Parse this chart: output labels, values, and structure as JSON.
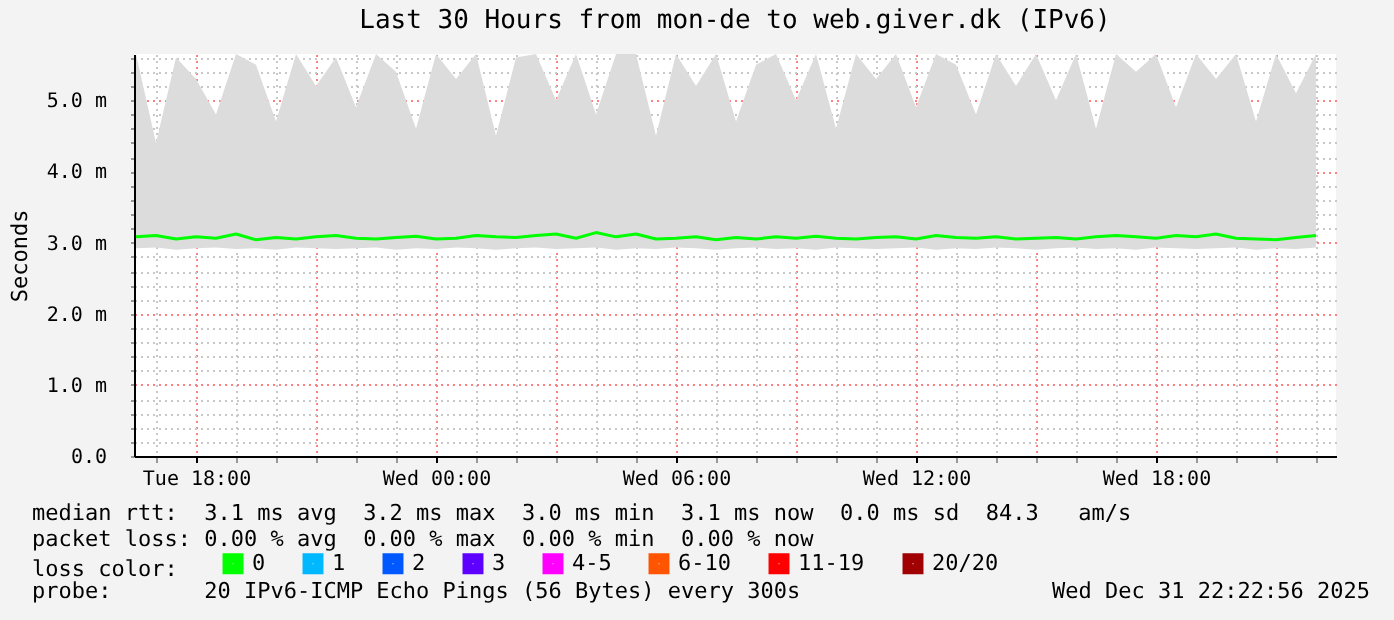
{
  "chart_data": {
    "type": "line",
    "title": "Last 30 Hours from mon-de to web.giver.dk (IPv6)",
    "ylabel": "Seconds",
    "legend_title": "loss color:",
    "legend": "bottom left",
    "grid": true,
    "x": [
      "2025-12-30T16:30",
      "2025-12-30T17:00",
      "2025-12-30T17:30",
      "2025-12-30T18:00",
      "2025-12-30T18:30",
      "2025-12-30T19:00",
      "2025-12-30T19:30",
      "2025-12-30T20:00",
      "2025-12-30T20:30",
      "2025-12-30T21:00",
      "2025-12-30T21:30",
      "2025-12-30T22:00",
      "2025-12-30T22:30",
      "2025-12-30T23:00",
      "2025-12-30T23:30",
      "2025-12-31T00:00",
      "2025-12-31T00:30",
      "2025-12-31T01:00",
      "2025-12-31T01:30",
      "2025-12-31T02:00",
      "2025-12-31T02:30",
      "2025-12-31T03:00",
      "2025-12-31T03:30",
      "2025-12-31T04:00",
      "2025-12-31T04:30",
      "2025-12-31T05:00",
      "2025-12-31T05:30",
      "2025-12-31T06:00",
      "2025-12-31T06:30",
      "2025-12-31T07:00",
      "2025-12-31T07:30",
      "2025-12-31T08:00",
      "2025-12-31T08:30",
      "2025-12-31T09:00",
      "2025-12-31T09:30",
      "2025-12-31T10:00",
      "2025-12-31T10:30",
      "2025-12-31T11:00",
      "2025-12-31T11:30",
      "2025-12-31T12:00",
      "2025-12-31T12:30",
      "2025-12-31T13:00",
      "2025-12-31T13:30",
      "2025-12-31T14:00",
      "2025-12-31T14:30",
      "2025-12-31T15:00",
      "2025-12-31T15:30",
      "2025-12-31T16:00",
      "2025-12-31T16:30",
      "2025-12-31T17:00",
      "2025-12-31T17:30",
      "2025-12-31T18:00",
      "2025-12-31T18:30",
      "2025-12-31T19:00",
      "2025-12-31T19:30",
      "2025-12-31T20:00",
      "2025-12-31T20:30",
      "2025-12-31T21:00",
      "2025-12-31T21:30",
      "2025-12-31T22:00"
    ],
    "series": [
      {
        "name": "0",
        "color": "#00ff00",
        "values": [
          3.08,
          3.1,
          3.05,
          3.08,
          3.06,
          3.12,
          3.04,
          3.07,
          3.05,
          3.08,
          3.1,
          3.06,
          3.05,
          3.07,
          3.09,
          3.05,
          3.06,
          3.1,
          3.08,
          3.07,
          3.1,
          3.12,
          3.06,
          3.14,
          3.08,
          3.12,
          3.05,
          3.06,
          3.08,
          3.04,
          3.07,
          3.05,
          3.08,
          3.06,
          3.09,
          3.06,
          3.05,
          3.07,
          3.08,
          3.05,
          3.1,
          3.07,
          3.06,
          3.08,
          3.05,
          3.06,
          3.07,
          3.05,
          3.08,
          3.1,
          3.08,
          3.06,
          3.1,
          3.08,
          3.12,
          3.06,
          3.05,
          3.04,
          3.07,
          3.1
        ],
        "lower": [
          2.92,
          2.93,
          2.9,
          2.92,
          2.93,
          2.91,
          2.92,
          2.9,
          2.93,
          2.92,
          2.91,
          2.92,
          2.93,
          2.9,
          2.92,
          2.91,
          2.93,
          2.92,
          2.9,
          2.92,
          2.93,
          2.91,
          2.92,
          2.93,
          2.9,
          2.92,
          2.91,
          2.93,
          2.92,
          2.9,
          2.92,
          2.93,
          2.91,
          2.92,
          2.9,
          2.93,
          2.92,
          2.91,
          2.92,
          2.93,
          2.9,
          2.92,
          2.91,
          2.93,
          2.92,
          2.9,
          2.92,
          2.93,
          2.91,
          2.92,
          2.9,
          2.93,
          2.92,
          2.91,
          2.92,
          2.93,
          2.9,
          2.92,
          2.91,
          2.93
        ],
        "upper": [
          5.65,
          4.4,
          5.6,
          5.3,
          4.8,
          5.65,
          5.5,
          4.7,
          5.65,
          5.2,
          5.6,
          4.9,
          5.65,
          5.4,
          4.6,
          5.65,
          5.3,
          5.65,
          4.5,
          5.6,
          5.65,
          5.0,
          5.65,
          4.8,
          5.65,
          5.65,
          4.5,
          5.65,
          5.2,
          5.65,
          4.7,
          5.5,
          5.65,
          5.0,
          5.65,
          4.6,
          5.65,
          5.3,
          5.65,
          4.9,
          5.65,
          5.5,
          4.8,
          5.65,
          5.2,
          5.65,
          5.0,
          5.65,
          4.6,
          5.65,
          5.4,
          5.65,
          4.9,
          5.65,
          5.3,
          5.65,
          4.7,
          5.65,
          5.1,
          5.65
        ]
      },
      {
        "name": "1",
        "color": "#00b8ff",
        "values": [
          null,
          null,
          null,
          null,
          null,
          null,
          null,
          null,
          null,
          null,
          null,
          null,
          null,
          null,
          null,
          null,
          null,
          null,
          null,
          null,
          null,
          null,
          null,
          null,
          null,
          null,
          null,
          null,
          null,
          null,
          null,
          null,
          null,
          null,
          null,
          null,
          null,
          null,
          null,
          null,
          null,
          null,
          null,
          null,
          null,
          null,
          null,
          null,
          null,
          null,
          null,
          null,
          null,
          null,
          null,
          null,
          null,
          null,
          null,
          null
        ]
      },
      {
        "name": "2",
        "color": "#0059ff",
        "values": [
          null,
          null,
          null,
          null,
          null,
          null,
          null,
          null,
          null,
          null,
          null,
          null,
          null,
          null,
          null,
          null,
          null,
          null,
          null,
          null,
          null,
          null,
          null,
          null,
          null,
          null,
          null,
          null,
          null,
          null,
          null,
          null,
          null,
          null,
          null,
          null,
          null,
          null,
          null,
          null,
          null,
          null,
          null,
          null,
          null,
          null,
          null,
          null,
          null,
          null,
          null,
          null,
          null,
          null,
          null,
          null,
          null,
          null,
          null,
          null
        ]
      },
      {
        "name": "3",
        "color": "#5e00ff",
        "values": [
          null,
          null,
          null,
          null,
          null,
          null,
          null,
          null,
          null,
          null,
          null,
          null,
          null,
          null,
          null,
          null,
          null,
          null,
          null,
          null,
          null,
          null,
          null,
          null,
          null,
          null,
          null,
          null,
          null,
          null,
          null,
          null,
          null,
          null,
          null,
          null,
          null,
          null,
          null,
          null,
          null,
          null,
          null,
          null,
          null,
          null,
          null,
          null,
          null,
          null,
          null,
          null,
          null,
          null,
          null,
          null,
          null,
          null,
          null,
          null
        ]
      },
      {
        "name": "4-5",
        "color": "#ff00ff",
        "values": [
          null,
          null,
          null,
          null,
          null,
          null,
          null,
          null,
          null,
          null,
          null,
          null,
          null,
          null,
          null,
          null,
          null,
          null,
          null,
          null,
          null,
          null,
          null,
          null,
          null,
          null,
          null,
          null,
          null,
          null,
          null,
          null,
          null,
          null,
          null,
          null,
          null,
          null,
          null,
          null,
          null,
          null,
          null,
          null,
          null,
          null,
          null,
          null,
          null,
          null,
          null,
          null,
          null,
          null,
          null,
          null,
          null,
          null,
          null,
          null
        ]
      },
      {
        "name": "6-10",
        "color": "#ff5500",
        "values": [
          null,
          null,
          null,
          null,
          null,
          null,
          null,
          null,
          null,
          null,
          null,
          null,
          null,
          null,
          null,
          null,
          null,
          null,
          null,
          null,
          null,
          null,
          null,
          null,
          null,
          null,
          null,
          null,
          null,
          null,
          null,
          null,
          null,
          null,
          null,
          null,
          null,
          null,
          null,
          null,
          null,
          null,
          null,
          null,
          null,
          null,
          null,
          null,
          null,
          null,
          null,
          null,
          null,
          null,
          null,
          null,
          null,
          null,
          null,
          null
        ]
      },
      {
        "name": "11-19",
        "color": "#ff0000",
        "values": [
          null,
          null,
          null,
          null,
          null,
          null,
          null,
          null,
          null,
          null,
          null,
          null,
          null,
          null,
          null,
          null,
          null,
          null,
          null,
          null,
          null,
          null,
          null,
          null,
          null,
          null,
          null,
          null,
          null,
          null,
          null,
          null,
          null,
          null,
          null,
          null,
          null,
          null,
          null,
          null,
          null,
          null,
          null,
          null,
          null,
          null,
          null,
          null,
          null,
          null,
          null,
          null,
          null,
          null,
          null,
          null,
          null,
          null,
          null,
          null
        ]
      },
      {
        "name": "20/20",
        "color": "#a10000",
        "values": [
          null,
          null,
          null,
          null,
          null,
          null,
          null,
          null,
          null,
          null,
          null,
          null,
          null,
          null,
          null,
          null,
          null,
          null,
          null,
          null,
          null,
          null,
          null,
          null,
          null,
          null,
          null,
          null,
          null,
          null,
          null,
          null,
          null,
          null,
          null,
          null,
          null,
          null,
          null,
          null,
          null,
          null,
          null,
          null,
          null,
          null,
          null,
          null,
          null,
          null,
          null,
          null,
          null,
          null,
          null,
          null,
          null,
          null,
          null,
          null
        ]
      }
    ],
    "xlim": [
      "2025-12-30T16:27",
      "2025-12-31T22:30"
    ],
    "xticks": [
      {
        "value": "2025-12-30T17:00",
        "label": null
      },
      {
        "value": "2025-12-30T18:00",
        "label": "Tue 18:00"
      },
      {
        "value": "2025-12-30T19:00",
        "label": null
      },
      {
        "value": "2025-12-30T20:00",
        "label": null
      },
      {
        "value": "2025-12-30T21:00",
        "label": null
      },
      {
        "value": "2025-12-30T22:00",
        "label": null
      },
      {
        "value": "2025-12-30T23:00",
        "label": null
      },
      {
        "value": "2025-12-31T00:00",
        "label": "Wed 00:00"
      },
      {
        "value": "2025-12-31T01:00",
        "label": null
      },
      {
        "value": "2025-12-31T02:00",
        "label": null
      },
      {
        "value": "2025-12-31T03:00",
        "label": null
      },
      {
        "value": "2025-12-31T04:00",
        "label": null
      },
      {
        "value": "2025-12-31T05:00",
        "label": null
      },
      {
        "value": "2025-12-31T06:00",
        "label": "Wed 06:00"
      },
      {
        "value": "2025-12-31T07:00",
        "label": null
      },
      {
        "value": "2025-12-31T08:00",
        "label": null
      },
      {
        "value": "2025-12-31T09:00",
        "label": null
      },
      {
        "value": "2025-12-31T10:00",
        "label": null
      },
      {
        "value": "2025-12-31T11:00",
        "label": null
      },
      {
        "value": "2025-12-31T12:00",
        "label": "Wed 12:00"
      },
      {
        "value": "2025-12-31T13:00",
        "label": null
      },
      {
        "value": "2025-12-31T14:00",
        "label": null
      },
      {
        "value": "2025-12-31T15:00",
        "label": null
      },
      {
        "value": "2025-12-31T16:00",
        "label": null
      },
      {
        "value": "2025-12-31T17:00",
        "label": null
      },
      {
        "value": "2025-12-31T18:00",
        "label": "Wed 18:00"
      },
      {
        "value": "2025-12-31T19:00",
        "label": null
      },
      {
        "value": "2025-12-31T20:00",
        "label": null
      },
      {
        "value": "2025-12-31T21:00",
        "label": null
      },
      {
        "value": "2025-12-31T22:00",
        "label": null
      }
    ],
    "ylim": [
      0,
      5.65
    ],
    "yticks": [
      {
        "value": 0,
        "label": "0.0"
      },
      {
        "value": 0.2,
        "label": null
      },
      {
        "value": 0.4,
        "label": null
      },
      {
        "value": 0.6,
        "label": null
      },
      {
        "value": 0.8,
        "label": null
      },
      {
        "value": 1,
        "label": "1.0 m"
      },
      {
        "value": 1.2,
        "label": null
      },
      {
        "value": 1.4,
        "label": null
      },
      {
        "value": 1.6,
        "label": null
      },
      {
        "value": 1.8,
        "label": null
      },
      {
        "value": 2,
        "label": "2.0 m"
      },
      {
        "value": 2.2,
        "label": null
      },
      {
        "value": 2.4,
        "label": null
      },
      {
        "value": 2.6,
        "label": null
      },
      {
        "value": 2.8,
        "label": null
      },
      {
        "value": 3,
        "label": "3.0 m"
      },
      {
        "value": 3.2,
        "label": null
      },
      {
        "value": 3.4,
        "label": null
      },
      {
        "value": 3.6,
        "label": null
      },
      {
        "value": 3.8,
        "label": null
      },
      {
        "value": 4,
        "label": "4.0 m"
      },
      {
        "value": 4.2,
        "label": null
      },
      {
        "value": 4.4,
        "label": null
      },
      {
        "value": 4.6,
        "label": null
      },
      {
        "value": 4.8,
        "label": null
      },
      {
        "value": 5,
        "label": "5.0 m"
      },
      {
        "value": 5.2,
        "label": null
      },
      {
        "value": 5.4,
        "label": null
      },
      {
        "value": 5.6,
        "label": null
      }
    ],
    "annotations": [
      "median rtt:  3.1 ms avg  3.2 ms max  3.0 ms min  3.1 ms now  0.0 ms sd  84.3   am/s",
      "packet loss: 0.00 % avg  0.00 % max  0.00 % min  0.00 % now",
      "probe:       20 IPv6-ICMP Echo Pings (56 Bytes) every 300s",
      "Wed Dec 31 22:22:56 2025"
    ]
  }
}
